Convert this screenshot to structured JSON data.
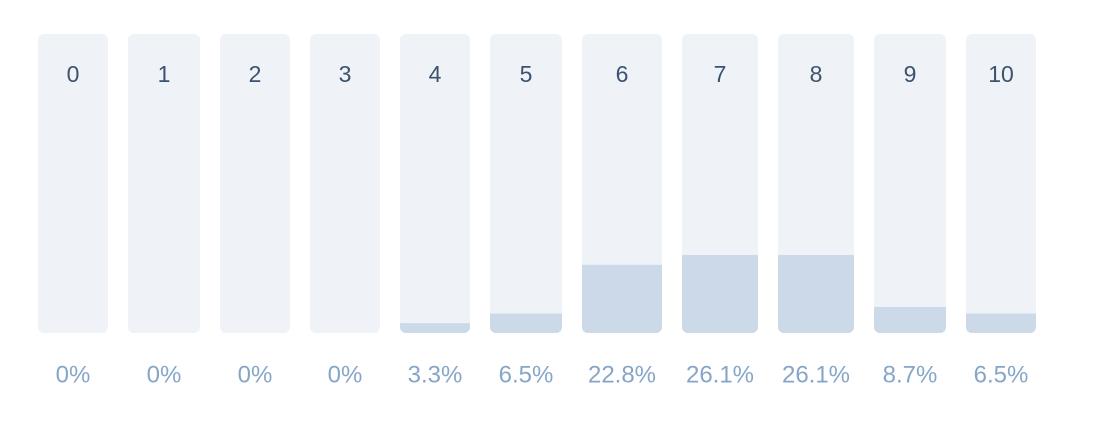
{
  "chart_data": {
    "type": "bar",
    "categories": [
      "0",
      "1",
      "2",
      "3",
      "4",
      "5",
      "6",
      "7",
      "8",
      "9",
      "10"
    ],
    "values": [
      0,
      0,
      0,
      0,
      3.3,
      6.5,
      22.8,
      26.1,
      26.1,
      8.7,
      6.5
    ],
    "value_labels": [
      "0%",
      "0%",
      "0%",
      "0%",
      "3.3%",
      "6.5%",
      "22.8%",
      "26.1%",
      "26.1%",
      "8.7%",
      "6.5%"
    ],
    "color": "#cbd9e9",
    "ylim": [
      0,
      100
    ]
  }
}
